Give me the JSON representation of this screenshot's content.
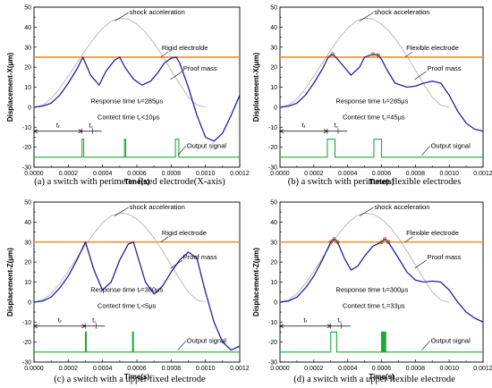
{
  "charts": [
    {
      "caption": "(a) a switch with perimeter fixed electrode(X-axis)",
      "ylabel": "Displacement-X(μm)",
      "xlabel": "Time(s)",
      "xlim": [
        0,
        0.0012
      ],
      "ylim": [
        -30,
        50
      ],
      "xticks": [
        "0.0000",
        "0.0002",
        "0.0004",
        "0.0006",
        "0.0008",
        "0.0010",
        "0.0012"
      ],
      "yticks": [
        "-30",
        "-20",
        "-10",
        "0",
        "10",
        "20",
        "30",
        "40",
        "50"
      ],
      "labels": {
        "shock": "shock acceleration",
        "electrode": "Rigid electrolde",
        "proof": "Proof mass",
        "response": "Response time tᵣ=285μs",
        "contact": "Contect time t꜀<10μs",
        "output": "Output signal",
        "tr": "tᵣ",
        "tc": "t꜀"
      },
      "chart_data": {
        "type": "line",
        "series": [
          {
            "role": "shock acceleration",
            "color": "#aaaaaa",
            "x": [
              0,
              5e-05,
              0.0001,
              0.00015,
              0.0002,
              0.00025,
              0.0003,
              0.00035,
              0.0004,
              0.00045,
              0.0005,
              0.00055,
              0.0006,
              0.00065,
              0.0007,
              0.00075,
              0.0008,
              0.00085,
              0.0009,
              0.00095,
              0.001
            ],
            "y": [
              0,
              1.1,
              4.2,
              9.3,
              15.5,
              22,
              28.5,
              34.5,
              39.5,
              43,
              44.5,
              44,
              41.5,
              37.5,
              32,
              25.5,
              18.5,
              11.5,
              5,
              1,
              0
            ]
          },
          {
            "role": "rigid electrode",
            "color": "#ff8c1a",
            "x": [
              0,
              0.0012
            ],
            "y": [
              25,
              25
            ]
          },
          {
            "role": "proof mass",
            "color": "#1f1faf",
            "x": [
              0,
              5e-05,
              0.0001,
              0.00015,
              0.0002,
              0.00025,
              0.000285,
              0.00033,
              0.00038,
              0.00042,
              0.00047,
              0.0005,
              0.00053,
              0.00058,
              0.00063,
              0.00068,
              0.00072,
              0.00076,
              0.0008,
              0.00083,
              0.00085,
              0.0009,
              0.00095,
              0.001,
              0.00105,
              0.0011,
              0.00115,
              0.0012
            ],
            "y": [
              0,
              0.5,
              2,
              6,
              12,
              19,
              25,
              16,
              11,
              18,
              23.5,
              25,
              20,
              14,
              11,
              13,
              17,
              22,
              24.5,
              25,
              22,
              10,
              -4,
              -15,
              -17,
              -13,
              -4,
              6
            ]
          },
          {
            "role": "output signal",
            "color": "#1fa83a",
            "pulses": [
              [
                0.00028,
                0.00029
              ],
              [
                0.000528,
                0.000535
              ],
              [
                0.000825,
                0.000845
              ]
            ],
            "baseline": -25,
            "high": -16
          }
        ]
      }
    },
    {
      "caption": "(b) a switch with perimeter flexible electrodes",
      "ylabel": "Displacement-X(μm)",
      "xlabel": "Time(s)",
      "xlim": [
        0,
        0.0012
      ],
      "ylim": [
        -30,
        50
      ],
      "xticks": [
        "0.0000",
        "0.0002",
        "0.0004",
        "0.0006",
        "0.0008",
        "0.0010",
        "0.0012"
      ],
      "yticks": [
        "-30",
        "-20",
        "-10",
        "0",
        "10",
        "20",
        "30",
        "40",
        "50"
      ],
      "labels": {
        "shock": "shock acceleration",
        "electrode": "Flexible electrode",
        "proof": "Proof mass",
        "response": "Response time tᵣ=285μs",
        "contact": "Contect time t꜀=45μs",
        "output": "Output signal",
        "tr": "tᵣ",
        "tc": "t꜀"
      },
      "chart_data": {
        "type": "line",
        "series": [
          {
            "role": "shock acceleration",
            "color": "#aaaaaa",
            "x": [
              0,
              5e-05,
              0.0001,
              0.00015,
              0.0002,
              0.00025,
              0.0003,
              0.00035,
              0.0004,
              0.00045,
              0.0005,
              0.00055,
              0.0006,
              0.00065,
              0.0007,
              0.00075,
              0.0008,
              0.00085,
              0.0009,
              0.00095,
              0.001
            ],
            "y": [
              0,
              1.1,
              4.2,
              9.3,
              15.5,
              22,
              28.5,
              34.5,
              39.5,
              43,
              44.5,
              44,
              41.5,
              37.5,
              32,
              25.5,
              18.5,
              11.5,
              5,
              1,
              0
            ]
          },
          {
            "role": "flexible electrode",
            "color": "#ff8c1a",
            "x": [
              0,
              0.0012
            ],
            "y": [
              25,
              25
            ]
          },
          {
            "role": "proof mass",
            "color": "#1f1faf",
            "x": [
              0,
              5e-05,
              0.0001,
              0.00015,
              0.0002,
              0.00025,
              0.000285,
              0.00031,
              0.00033,
              0.00038,
              0.00042,
              0.00047,
              0.0005,
              0.00055,
              0.00058,
              0.0006,
              0.00063,
              0.00068,
              0.00075,
              0.0008,
              0.00085,
              0.0009,
              0.00095,
              0.001,
              0.00105,
              0.0011,
              0.00115,
              0.0012
            ],
            "y": [
              0,
              0.5,
              2,
              6,
              12,
              19,
              25,
              26.5,
              25,
              20,
              16,
              20,
              25,
              26.5,
              26,
              24,
              19,
              12,
              10,
              10.5,
              12,
              13,
              12,
              6,
              -2,
              -8,
              -11,
              -12
            ]
          },
          {
            "role": "output signal",
            "color": "#1fa83a",
            "pulses": [
              [
                0.00028,
                0.000325
              ],
              [
                0.000555,
                0.0006
              ]
            ],
            "baseline": -25,
            "high": -16
          }
        ]
      }
    },
    {
      "caption": "(c) a switch with a upper fixed electrode",
      "ylabel": "Displacement-Z(μm)",
      "xlabel": "Time(s)",
      "xlim": [
        0,
        0.0012
      ],
      "ylim": [
        -30,
        50
      ],
      "xticks": [
        "0.0000",
        "0.0002",
        "0.0004",
        "0.0006",
        "0.0008",
        "0.0010",
        "0.0012"
      ],
      "yticks": [
        "-30",
        "-20",
        "-10",
        "0",
        "10",
        "20",
        "30",
        "40",
        "50"
      ],
      "labels": {
        "shock": "shock acceleration",
        "electrode": "Rigid electrode",
        "proof": "Proof mass",
        "response": "Response time tᵣ=300μs",
        "contact": "Contect time t꜀<5μs",
        "output": "Output signal",
        "tr": "tᵣ",
        "tc": "t꜀"
      },
      "chart_data": {
        "type": "line",
        "series": [
          {
            "role": "shock acceleration",
            "color": "#aaaaaa",
            "x": [
              0,
              5e-05,
              0.0001,
              0.00015,
              0.0002,
              0.00025,
              0.0003,
              0.00035,
              0.0004,
              0.00045,
              0.0005,
              0.00055,
              0.0006,
              0.00065,
              0.0007,
              0.00075,
              0.0008,
              0.00085,
              0.0009,
              0.00095,
              0.001
            ],
            "y": [
              0,
              1.1,
              4.2,
              9.3,
              15.5,
              22,
              28.5,
              34.5,
              39.5,
              43,
              44.5,
              44,
              41.5,
              37.5,
              32,
              25.5,
              18.5,
              11.5,
              5,
              1,
              0
            ]
          },
          {
            "role": "rigid electrode",
            "color": "#ff8c1a",
            "x": [
              0,
              0.0012
            ],
            "y": [
              30,
              30
            ]
          },
          {
            "role": "proof mass",
            "color": "#1f1faf",
            "x": [
              0,
              5e-05,
              0.0001,
              0.00015,
              0.0002,
              0.00025,
              0.0003,
              0.00035,
              0.0004,
              0.00045,
              0.0005,
              0.00055,
              0.00058,
              0.00065,
              0.0007,
              0.00075,
              0.0008,
              0.00085,
              0.0009,
              0.00095,
              0.001,
              0.00105,
              0.0011,
              0.00115,
              0.0012
            ],
            "y": [
              0,
              0.5,
              2.5,
              7,
              13,
              21,
              30,
              16,
              6,
              10,
              21,
              29,
              30,
              10,
              4,
              8,
              15,
              21,
              25,
              22,
              5,
              -10,
              -20,
              -24,
              -22
            ]
          },
          {
            "role": "output signal",
            "color": "#1fa83a",
            "pulses": [
              [
                0.0003,
                0.000305
              ],
              [
                0.000575,
                0.00058
              ]
            ],
            "baseline": -25,
            "high": -15
          }
        ]
      }
    },
    {
      "caption": "(d) a switch with a upper flexible electrode",
      "ylabel": "Displacement-Z(μm)",
      "xlabel": "Time(s)",
      "xlim": [
        0,
        0.0012
      ],
      "ylim": [
        -30,
        50
      ],
      "xticks": [
        "0.0000",
        "0.0002",
        "0.0004",
        "0.0006",
        "0.0008",
        "0.0010",
        "0.0012"
      ],
      "yticks": [
        "-30",
        "-20",
        "-10",
        "0",
        "10",
        "20",
        "30",
        "40",
        "50"
      ],
      "labels": {
        "shock": "shock acceleration",
        "electrode": "Flexible electrode",
        "proof": "Proof mass",
        "response": "Response time tᵣ=300μs",
        "contact": "Contect time t꜀=33μs",
        "output": "Output signal",
        "tr": "tᵣ",
        "tc": "t꜀"
      },
      "chart_data": {
        "type": "line",
        "series": [
          {
            "role": "shock acceleration",
            "color": "#aaaaaa",
            "x": [
              0,
              5e-05,
              0.0001,
              0.00015,
              0.0002,
              0.00025,
              0.0003,
              0.00035,
              0.0004,
              0.00045,
              0.0005,
              0.00055,
              0.0006,
              0.00065,
              0.0007,
              0.00075,
              0.0008,
              0.00085,
              0.0009,
              0.00095,
              0.001
            ],
            "y": [
              0,
              1.1,
              4.2,
              9.3,
              15.5,
              22,
              28.5,
              34.5,
              39.5,
              43,
              44.5,
              44,
              41.5,
              37.5,
              32,
              25.5,
              18.5,
              11.5,
              5,
              1,
              0
            ]
          },
          {
            "role": "flexible electrode",
            "color": "#ff8c1a",
            "x": [
              0,
              0.0012
            ],
            "y": [
              30,
              30
            ]
          },
          {
            "role": "proof mass",
            "color": "#1f1faf",
            "x": [
              0,
              5e-05,
              0.0001,
              0.00015,
              0.0002,
              0.00025,
              0.0003,
              0.00032,
              0.00034,
              0.00038,
              0.00042,
              0.00046,
              0.0005,
              0.00055,
              0.0006,
              0.00062,
              0.00064,
              0.0007,
              0.00075,
              0.0008,
              0.00085,
              0.0009,
              0.00095,
              0.001,
              0.00105,
              0.0011,
              0.00115,
              0.0012
            ],
            "y": [
              0,
              0.5,
              2.5,
              7,
              13,
              21,
              30,
              31.5,
              30,
              22,
              16,
              18,
              23,
              28,
              30,
              31.5,
              30,
              22,
              15,
              11,
              10,
              10.5,
              10,
              6,
              0,
              -5,
              -8,
              -10
            ]
          },
          {
            "role": "output signal",
            "color": "#1fa83a",
            "pulses": [
              [
                0.0003,
                0.000335
              ],
              [
                0.0006,
                0.000605
              ],
              [
                0.00061,
                0.000615
              ],
              [
                0.00062,
                0.000625
              ]
            ],
            "baseline": -25,
            "high": -15
          }
        ]
      }
    }
  ]
}
